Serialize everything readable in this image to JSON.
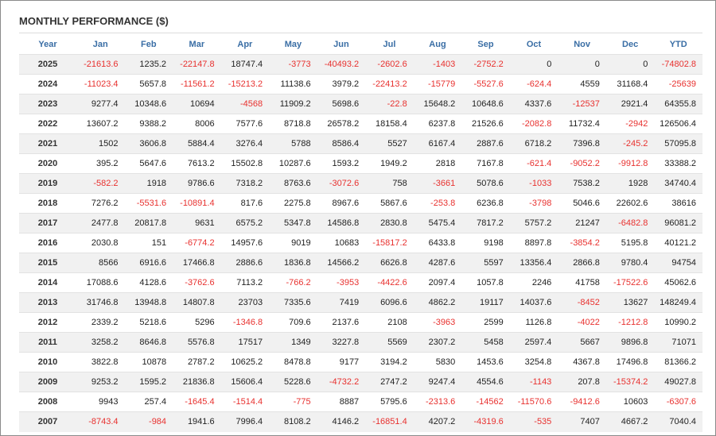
{
  "title": "MONTHLY PERFORMANCE ($)",
  "table": {
    "header": [
      "Year",
      "Jan",
      "Feb",
      "Mar",
      "Apr",
      "May",
      "Jun",
      "Jul",
      "Aug",
      "Sep",
      "Oct",
      "Nov",
      "Dec",
      "YTD"
    ],
    "rows": [
      [
        "2025",
        "-21613.6",
        "1235.2",
        "-22147.8",
        "18747.4",
        "-3773",
        "-40493.2",
        "-2602.6",
        "-1403",
        "-2752.2",
        "0",
        "0",
        "0",
        "-74802.8"
      ],
      [
        "2024",
        "-11023.4",
        "5657.8",
        "-11561.2",
        "-15213.2",
        "11138.6",
        "3979.2",
        "-22413.2",
        "-15779",
        "-5527.6",
        "-624.4",
        "4559",
        "31168.4",
        "-25639"
      ],
      [
        "2023",
        "9277.4",
        "10348.6",
        "10694",
        "-4568",
        "11909.2",
        "5698.6",
        "-22.8",
        "15648.2",
        "10648.6",
        "4337.6",
        "-12537",
        "2921.4",
        "64355.8"
      ],
      [
        "2022",
        "13607.2",
        "9388.2",
        "8006",
        "7577.6",
        "8718.8",
        "26578.2",
        "18158.4",
        "6237.8",
        "21526.6",
        "-2082.8",
        "11732.4",
        "-2942",
        "126506.4"
      ],
      [
        "2021",
        "1502",
        "3606.8",
        "5884.4",
        "3276.4",
        "5788",
        "8586.4",
        "5527",
        "6167.4",
        "2887.6",
        "6718.2",
        "7396.8",
        "-245.2",
        "57095.8"
      ],
      [
        "2020",
        "395.2",
        "5647.6",
        "7613.2",
        "15502.8",
        "10287.6",
        "1593.2",
        "1949.2",
        "2818",
        "7167.8",
        "-621.4",
        "-9052.2",
        "-9912.8",
        "33388.2"
      ],
      [
        "2019",
        "-582.2",
        "1918",
        "9786.6",
        "7318.2",
        "8763.6",
        "-3072.6",
        "758",
        "-3661",
        "5078.6",
        "-1033",
        "7538.2",
        "1928",
        "34740.4"
      ],
      [
        "2018",
        "7276.2",
        "-5531.6",
        "-10891.4",
        "817.6",
        "2275.8",
        "8967.6",
        "5867.6",
        "-253.8",
        "6236.8",
        "-3798",
        "5046.6",
        "22602.6",
        "38616"
      ],
      [
        "2017",
        "2477.8",
        "20817.8",
        "9631",
        "6575.2",
        "5347.8",
        "14586.8",
        "2830.8",
        "5475.4",
        "7817.2",
        "5757.2",
        "21247",
        "-6482.8",
        "96081.2"
      ],
      [
        "2016",
        "2030.8",
        "151",
        "-6774.2",
        "14957.6",
        "9019",
        "10683",
        "-15817.2",
        "6433.8",
        "9198",
        "8897.8",
        "-3854.2",
        "5195.8",
        "40121.2"
      ],
      [
        "2015",
        "8566",
        "6916.6",
        "17466.8",
        "2886.6",
        "1836.8",
        "14566.2",
        "6626.8",
        "4287.6",
        "5597",
        "13356.4",
        "2866.8",
        "9780.4",
        "94754"
      ],
      [
        "2014",
        "17088.6",
        "4128.6",
        "-3762.6",
        "7113.2",
        "-766.2",
        "-3953",
        "-4422.6",
        "2097.4",
        "1057.8",
        "2246",
        "41758",
        "-17522.6",
        "45062.6"
      ],
      [
        "2013",
        "31746.8",
        "13948.8",
        "14807.8",
        "23703",
        "7335.6",
        "7419",
        "6096.6",
        "4862.2",
        "19117",
        "14037.6",
        "-8452",
        "13627",
        "148249.4"
      ],
      [
        "2012",
        "2339.2",
        "5218.6",
        "5296",
        "-1346.8",
        "709.6",
        "2137.6",
        "2108",
        "-3963",
        "2599",
        "1126.8",
        "-4022",
        "-1212.8",
        "10990.2"
      ],
      [
        "2011",
        "3258.2",
        "8646.8",
        "5576.8",
        "17517",
        "1349",
        "3227.8",
        "5569",
        "2307.2",
        "5458",
        "2597.4",
        "5667",
        "9896.8",
        "71071"
      ],
      [
        "2010",
        "3822.8",
        "10878",
        "2787.2",
        "10625.2",
        "8478.8",
        "9177",
        "3194.2",
        "5830",
        "1453.6",
        "3254.8",
        "4367.8",
        "17496.8",
        "81366.2"
      ],
      [
        "2009",
        "9253.2",
        "1595.2",
        "21836.8",
        "15606.4",
        "5228.6",
        "-4732.2",
        "2747.2",
        "9247.4",
        "4554.6",
        "-1143",
        "207.8",
        "-15374.2",
        "49027.8"
      ],
      [
        "2008",
        "9943",
        "257.4",
        "-1645.4",
        "-1514.4",
        "-775",
        "8887",
        "5795.6",
        "-2313.6",
        "-14562",
        "-11570.6",
        "-9412.6",
        "10603",
        "-6307.6"
      ],
      [
        "2007",
        "-8743.4",
        "-984",
        "1941.6",
        "7996.4",
        "8108.2",
        "4146.2",
        "-16851.4",
        "4207.2",
        "-4319.6",
        "-535",
        "7407",
        "4667.2",
        "7040.4"
      ]
    ]
  }
}
